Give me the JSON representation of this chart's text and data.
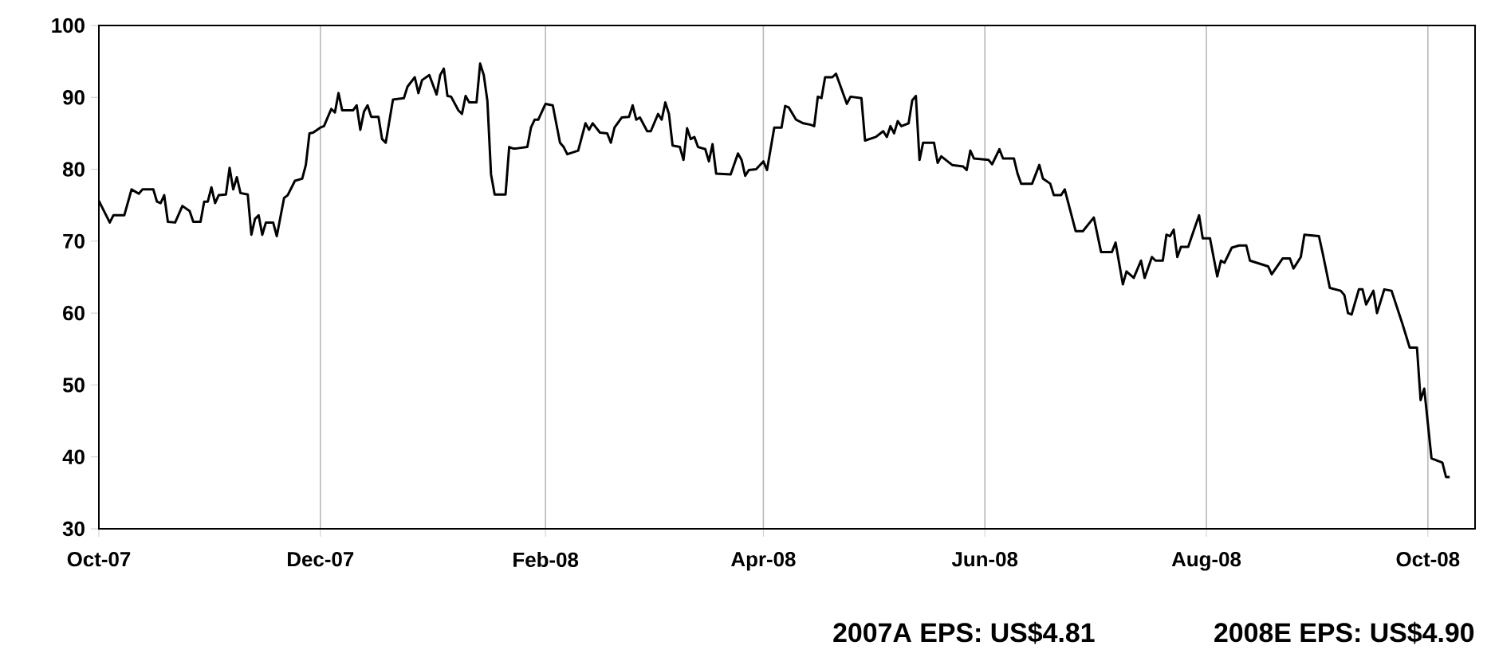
{
  "chart_data": {
    "type": "line",
    "x": [
      "2007-10-01",
      "2007-10-04",
      "2007-10-05",
      "2007-10-08",
      "2007-10-10",
      "2007-10-12",
      "2007-10-13",
      "2007-10-16",
      "2007-10-17",
      "2007-10-18",
      "2007-10-19",
      "2007-10-20",
      "2007-10-22",
      "2007-10-24",
      "2007-10-26",
      "2007-10-27",
      "2007-10-29",
      "2007-10-30",
      "2007-10-31",
      "2007-11-01",
      "2007-11-02",
      "2007-11-03",
      "2007-11-05",
      "2007-11-06",
      "2007-11-07",
      "2007-11-08",
      "2007-11-09",
      "2007-11-11",
      "2007-11-12",
      "2007-11-13",
      "2007-11-14",
      "2007-11-15",
      "2007-11-16",
      "2007-11-18",
      "2007-11-19",
      "2007-11-21",
      "2007-11-22",
      "2007-11-24",
      "2007-11-26",
      "2007-11-27",
      "2007-11-28",
      "2007-11-29",
      "2007-12-01",
      "2007-12-02",
      "2007-12-04",
      "2007-12-05",
      "2007-12-06",
      "2007-12-07",
      "2007-12-10",
      "2007-12-11",
      "2007-12-12",
      "2007-12-13",
      "2007-12-14",
      "2007-12-15",
      "2007-12-17",
      "2007-12-18",
      "2007-12-19",
      "2007-12-21",
      "2007-12-24",
      "2007-12-25",
      "2007-12-27",
      "2007-12-28",
      "2007-12-29",
      "2007-12-31",
      "2008-01-02",
      "2008-01-03",
      "2008-01-04",
      "2008-01-05",
      "2008-01-06",
      "2008-01-08",
      "2008-01-09",
      "2008-01-10",
      "2008-01-11",
      "2008-01-13",
      "2008-01-14",
      "2008-01-15",
      "2008-01-16",
      "2008-01-17",
      "2008-01-18",
      "2008-01-21",
      "2008-01-22",
      "2008-01-23",
      "2008-01-24",
      "2008-01-27",
      "2008-01-28",
      "2008-01-29",
      "2008-01-30",
      "2008-02-01",
      "2008-02-03",
      "2008-02-05",
      "2008-02-06",
      "2008-02-07",
      "2008-02-10",
      "2008-02-12",
      "2008-02-13",
      "2008-02-14",
      "2008-02-16",
      "2008-02-18",
      "2008-02-19",
      "2008-02-20",
      "2008-02-22",
      "2008-02-24",
      "2008-02-25",
      "2008-02-26",
      "2008-02-27",
      "2008-02-29",
      "2008-03-01",
      "2008-03-03",
      "2008-03-04",
      "2008-03-05",
      "2008-03-06",
      "2008-03-07",
      "2008-03-09",
      "2008-03-10",
      "2008-03-11",
      "2008-03-12",
      "2008-03-13",
      "2008-03-14",
      "2008-03-16",
      "2008-03-17",
      "2008-03-18",
      "2008-03-19",
      "2008-03-23",
      "2008-03-25",
      "2008-03-26",
      "2008-03-27",
      "2008-03-28",
      "2008-03-30",
      "2008-04-01",
      "2008-04-02",
      "2008-04-04",
      "2008-04-06",
      "2008-04-07",
      "2008-04-08",
      "2008-04-10",
      "2008-04-12",
      "2008-04-14",
      "2008-04-15",
      "2008-04-16",
      "2008-04-17",
      "2008-04-18",
      "2008-04-20",
      "2008-04-21",
      "2008-04-24",
      "2008-04-25",
      "2008-04-28",
      "2008-04-29",
      "2008-05-02",
      "2008-05-04",
      "2008-05-05",
      "2008-05-06",
      "2008-05-07",
      "2008-05-08",
      "2008-05-09",
      "2008-05-11",
      "2008-05-12",
      "2008-05-13",
      "2008-05-14",
      "2008-05-15",
      "2008-05-18",
      "2008-05-19",
      "2008-05-20",
      "2008-05-23",
      "2008-05-26",
      "2008-05-27",
      "2008-05-28",
      "2008-05-29",
      "2008-06-02",
      "2008-06-03",
      "2008-06-05",
      "2008-06-06",
      "2008-06-09",
      "2008-06-10",
      "2008-06-11",
      "2008-06-14",
      "2008-06-16",
      "2008-06-17",
      "2008-06-19",
      "2008-06-20",
      "2008-06-22",
      "2008-06-23",
      "2008-06-26",
      "2008-06-28",
      "2008-07-01",
      "2008-07-03",
      "2008-07-06",
      "2008-07-07",
      "2008-07-09",
      "2008-07-10",
      "2008-07-12",
      "2008-07-14",
      "2008-07-15",
      "2008-07-17",
      "2008-07-18",
      "2008-07-20",
      "2008-07-21",
      "2008-07-22",
      "2008-07-23",
      "2008-07-24",
      "2008-07-25",
      "2008-07-27",
      "2008-07-28",
      "2008-07-30",
      "2008-07-31",
      "2008-08-02",
      "2008-08-04",
      "2008-08-05",
      "2008-08-06",
      "2008-08-08",
      "2008-08-10",
      "2008-08-12",
      "2008-08-13",
      "2008-08-18",
      "2008-08-19",
      "2008-08-22",
      "2008-08-24",
      "2008-08-25",
      "2008-08-27",
      "2008-08-28",
      "2008-09-01",
      "2008-09-02",
      "2008-09-04",
      "2008-09-07",
      "2008-09-08",
      "2008-09-09",
      "2008-09-10",
      "2008-09-12",
      "2008-09-13",
      "2008-09-14",
      "2008-09-16",
      "2008-09-17",
      "2008-09-19",
      "2008-09-21",
      "2008-09-24",
      "2008-09-26",
      "2008-09-28",
      "2008-09-29",
      "2008-09-30",
      "2008-10-02",
      "2008-10-05",
      "2008-10-06",
      "2008-10-07"
    ],
    "series": [
      {
        "color": "#000000",
        "values": [
          75.6,
          72.6,
          73.6,
          73.6,
          77.2,
          76.6,
          77.2,
          77.2,
          75.5,
          75.3,
          76.4,
          72.7,
          72.6,
          74.9,
          74.2,
          72.7,
          72.7,
          75.5,
          75.5,
          77.5,
          75.3,
          76.4,
          76.5,
          80.2,
          77.2,
          78.9,
          76.7,
          76.5,
          70.9,
          73.1,
          73.6,
          70.9,
          72.6,
          72.6,
          70.7,
          76.0,
          76.4,
          78.4,
          78.7,
          80.6,
          85.0,
          85.1,
          85.8,
          86.0,
          88.4,
          87.9,
          90.6,
          88.2,
          88.2,
          88.9,
          85.5,
          88.0,
          88.9,
          87.3,
          87.3,
          84.2,
          83.7,
          89.7,
          89.9,
          91.5,
          92.8,
          90.6,
          92.4,
          93.1,
          90.4,
          93.1,
          94.0,
          90.2,
          90.1,
          88.2,
          87.7,
          90.2,
          89.3,
          89.3,
          94.7,
          93.1,
          89.5,
          79.3,
          76.5,
          76.5,
          83.1,
          82.9,
          82.9,
          83.1,
          85.8,
          86.9,
          86.9,
          89.1,
          88.9,
          83.7,
          83.1,
          82.1,
          82.6,
          86.4,
          85.5,
          86.4,
          85.1,
          85.0,
          83.7,
          85.8,
          87.2,
          87.3,
          88.9,
          86.9,
          87.2,
          85.3,
          85.3,
          87.7,
          86.9,
          89.3,
          87.7,
          83.3,
          83.1,
          81.3,
          85.7,
          84.2,
          84.5,
          83.1,
          82.8,
          81.1,
          83.5,
          79.4,
          79.3,
          82.2,
          81.3,
          79.1,
          79.9,
          80.0,
          81.1,
          79.9,
          85.8,
          85.8,
          88.8,
          88.6,
          86.9,
          86.4,
          86.2,
          86.0,
          90.1,
          89.9,
          92.8,
          92.8,
          93.3,
          89.1,
          90.1,
          89.9,
          84.0,
          84.5,
          85.3,
          84.5,
          86.0,
          85.0,
          86.7,
          86.0,
          86.4,
          89.6,
          90.2,
          81.3,
          83.7,
          83.7,
          80.9,
          81.8,
          80.6,
          80.4,
          79.9,
          82.6,
          81.5,
          81.3,
          80.7,
          82.8,
          81.5,
          81.5,
          79.4,
          78.0,
          78.0,
          80.6,
          78.7,
          78.0,
          76.4,
          76.4,
          77.2,
          71.4,
          71.4,
          73.3,
          68.5,
          68.5,
          69.8,
          64.0,
          65.8,
          64.9,
          67.3,
          64.9,
          67.8,
          67.3,
          67.3,
          70.9,
          70.7,
          71.6,
          67.8,
          69.2,
          69.2,
          70.7,
          73.6,
          70.4,
          70.4,
          65.1,
          67.3,
          67.0,
          69.1,
          69.4,
          69.4,
          67.3,
          66.5,
          65.4,
          67.6,
          67.6,
          66.2,
          67.8,
          70.9,
          70.7,
          68.4,
          63.5,
          63.1,
          62.5,
          60.0,
          59.8,
          63.3,
          63.3,
          61.2,
          63.1,
          60.0,
          63.3,
          63.1,
          58.5,
          55.2,
          55.2,
          47.9,
          49.5,
          39.8,
          39.2,
          37.2,
          37.2
        ]
      }
    ],
    "xlim": [
      "2007-10-01",
      "2008-10-14"
    ],
    "xticks": [
      {
        "value": "2007-10-01",
        "label": "Oct-07"
      },
      {
        "value": "2007-12-01",
        "label": "Dec-07"
      },
      {
        "value": "2008-02-01",
        "label": "Feb-08"
      },
      {
        "value": "2008-04-01",
        "label": "Apr-08"
      },
      {
        "value": "2008-06-01",
        "label": "Jun-08"
      },
      {
        "value": "2008-08-01",
        "label": "Aug-08"
      },
      {
        "value": "2008-10-01",
        "label": "Oct-08"
      }
    ],
    "ylim": [
      30,
      100
    ],
    "yticks": [
      30,
      40,
      50,
      60,
      70,
      80,
      90,
      100
    ],
    "grid": "x",
    "marker": "none",
    "line_style": "solid",
    "annotations": [
      "2007A EPS: US$4.81",
      "2008E EPS: US$4.90"
    ]
  }
}
